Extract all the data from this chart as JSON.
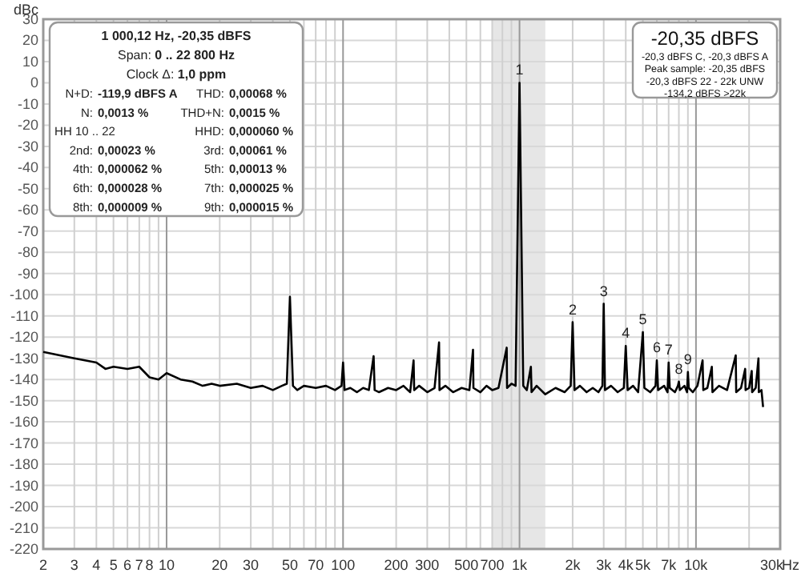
{
  "chart_data": {
    "type": "line",
    "ylabel": "dBc",
    "log": "x",
    "grid": true,
    "marker": "none",
    "line_style": "solid",
    "xlim": [
      2,
      30000
    ],
    "ylim": [
      -220,
      30
    ],
    "xticks": [
      2,
      3,
      4,
      5,
      6,
      7,
      8,
      {
        "value": 9,
        "label": null
      },
      10,
      20,
      30,
      {
        "value": 40,
        "label": null
      },
      50,
      {
        "value": 60,
        "label": null
      },
      70,
      {
        "value": 80,
        "label": null
      },
      {
        "value": 90,
        "label": null
      },
      100,
      200,
      300,
      {
        "value": 400,
        "label": null
      },
      500,
      {
        "value": 600,
        "label": null
      },
      700,
      {
        "value": 800,
        "label": null
      },
      {
        "value": 900,
        "label": null
      },
      {
        "value": 1000,
        "label": "1k"
      },
      {
        "value": 2000,
        "label": "2k"
      },
      {
        "value": 3000,
        "label": "3k"
      },
      {
        "value": 4000,
        "label": "4k"
      },
      {
        "value": 5000,
        "label": "5k"
      },
      {
        "value": 6000,
        "label": null
      },
      {
        "value": 7000,
        "label": "7k"
      },
      {
        "value": 8000,
        "label": null
      },
      {
        "value": 9000,
        "label": null
      },
      {
        "value": 10000,
        "label": "10k"
      },
      {
        "value": 20000,
        "label": null
      },
      {
        "value": 30000,
        "label": "30k"
      }
    ],
    "xlabel": "Hz",
    "yticks": [
      30,
      20,
      10,
      0,
      -10,
      -20,
      -30,
      -40,
      -50,
      -60,
      -70,
      -80,
      -90,
      -100,
      -110,
      -120,
      -130,
      -140,
      -150,
      -160,
      -170,
      -180,
      -190,
      -200,
      -210,
      -220
    ],
    "bands": [
      {
        "axis": "x",
        "from": 700,
        "to": 1400,
        "color": "#e6e6e6"
      }
    ],
    "series": [
      {
        "color": "#000000",
        "x": [
          2,
          3,
          4,
          4.5,
          5,
          6,
          7,
          8,
          9,
          10,
          12,
          14,
          16,
          18,
          20,
          25,
          30,
          35,
          40,
          45,
          48,
          50,
          52,
          55,
          60,
          70,
          80,
          90,
          98,
          100,
          102,
          110,
          120,
          130,
          140,
          149,
          151,
          160,
          180,
          200,
          220,
          240,
          251,
          253,
          270,
          300,
          330,
          350,
          352,
          380,
          420,
          470,
          520,
          545,
          548,
          600,
          650,
          700,
          760,
          846,
          850,
          900,
          950,
          1000,
          1050,
          1100,
          1160,
          1170,
          1250,
          1400,
          1600,
          1800,
          1950,
          2000,
          2050,
          2200,
          2400,
          2600,
          2800,
          2950,
          3000,
          3050,
          3300,
          3600,
          3900,
          4000,
          4100,
          4400,
          4700,
          5000,
          5100,
          5500,
          5900,
          6000,
          6100,
          6600,
          6900,
          7000,
          7100,
          7600,
          7900,
          8000,
          8100,
          8600,
          8900,
          9000,
          9100,
          9600,
          10200,
          10900,
          11000,
          11600,
          12300,
          12400,
          13500,
          15000,
          16800,
          16900,
          18000,
          19000,
          19100,
          20000,
          20700,
          20800,
          21800,
          22600,
          22700,
          23500,
          24000
        ],
        "values": [
          -127,
          -130,
          -132,
          -135,
          -134,
          -135,
          -134,
          -139,
          -140,
          -137,
          -140,
          -141,
          -143,
          -142,
          -143,
          -142,
          -144,
          -143,
          -145,
          -143,
          -142,
          -101,
          -143,
          -145,
          -143,
          -144,
          -143,
          -145,
          -143,
          -132,
          -145,
          -144,
          -146,
          -144,
          -145,
          -129,
          -145,
          -146,
          -144,
          -145,
          -143,
          -146,
          -131,
          -145,
          -143,
          -146,
          -144,
          -122.5,
          -145,
          -143,
          -146,
          -144,
          -145,
          -126,
          -144,
          -146,
          -143,
          -145,
          -144,
          -125,
          -144,
          -142,
          -143,
          0,
          -143,
          -145,
          -134,
          -146,
          -143,
          -147,
          -144,
          -146,
          -143,
          -113,
          -145,
          -143,
          -146,
          -144,
          -146,
          -143,
          -104.3,
          -145,
          -143,
          -146,
          -144,
          -124.2,
          -145,
          -143,
          -146,
          -117.7,
          -144,
          -146,
          -143,
          -131,
          -145,
          -143,
          -146,
          -132,
          -144,
          -146,
          -143,
          -141,
          -145,
          -143,
          -146,
          -136.5,
          -144,
          -146,
          -143,
          -131,
          -145,
          -144,
          -134,
          -146,
          -143,
          -145,
          -128.6,
          -146,
          -144,
          -135,
          -145,
          -144,
          -136,
          -146,
          -144,
          -130,
          -146,
          -145,
          -153
        ]
      }
    ],
    "annotations": [
      "1 000,12 Hz, -20,35 dBFS",
      "Span: 0 .. 22 800 Hz",
      "Clock Δ: 1,0 ppm",
      "N+D: -119,9 dBFS A",
      "THD: 0,00068 %",
      "N: 0,0013 %",
      "THD+N: 0,0015 %",
      "HH 10 .. 22",
      "HHD: 0,000060 %",
      "2nd: 0,00023 %",
      "3rd: 0,00061 %",
      "4th: 0,000062 %",
      "5th: 0,00013 %",
      "6th: 0,000028 %",
      "7th: 0,000025 %",
      "8th: 0,000009 %",
      "9th: 0,000015 %",
      "-20,35 dBFS",
      "-20,3 dBFS C, -20,3 dBFS A",
      "Peak sample: -20,35 dBFS",
      "-20,3 dBFS 22 - 22k UNW",
      "-134,2 dBFS >22k",
      {
        "text": "1",
        "x": 1000,
        "y": 0
      },
      {
        "text": "2",
        "x": 2000,
        "y": -113
      },
      {
        "text": "3",
        "x": 3000,
        "y": -104.3
      },
      {
        "text": "4",
        "x": 4000,
        "y": -124.2
      },
      {
        "text": "5",
        "x": 5000,
        "y": -117.7
      },
      {
        "text": "6",
        "x": 6000,
        "y": -131
      },
      {
        "text": "7",
        "x": 7000,
        "y": -132
      },
      {
        "text": "8",
        "x": 8000,
        "y": -141
      },
      {
        "text": "9",
        "x": 9000,
        "y": -136.5
      }
    ]
  }
}
